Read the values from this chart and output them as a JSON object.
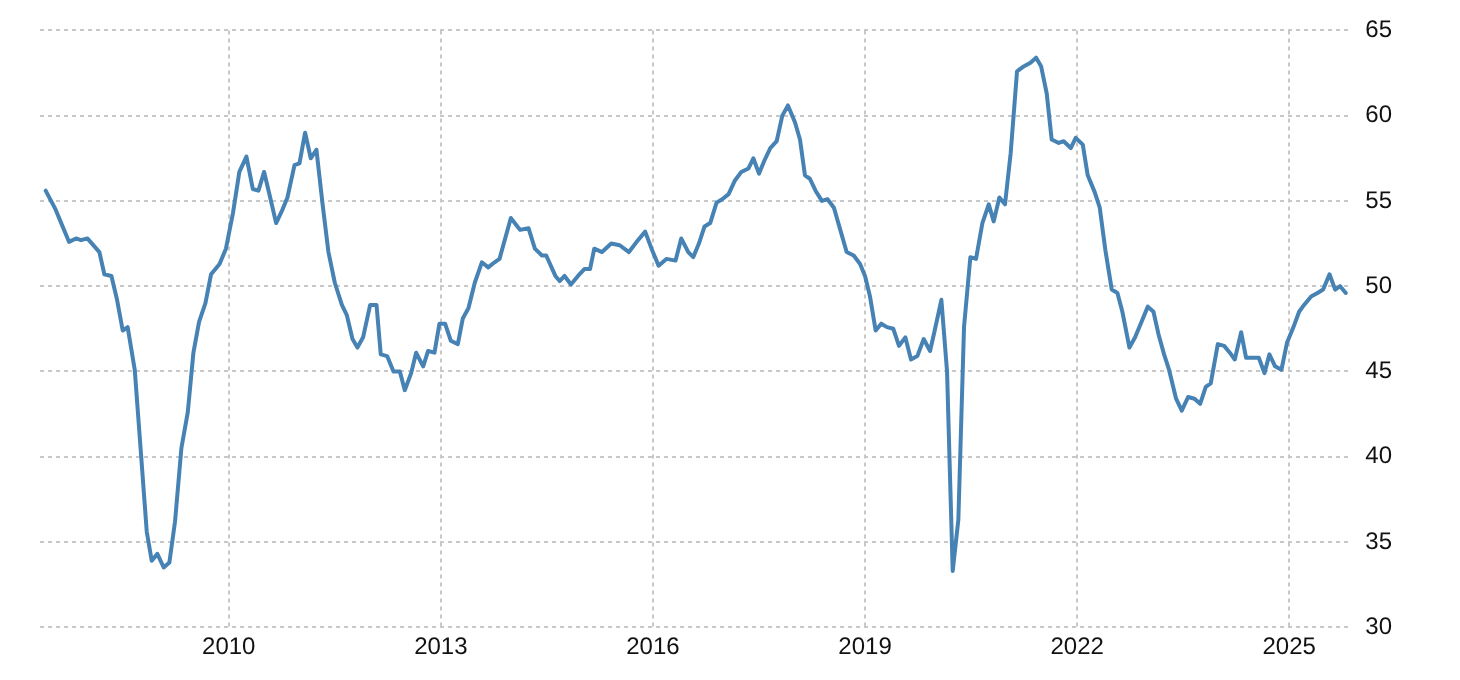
{
  "chart_data": {
    "type": "line",
    "color": "#4682b4",
    "grid": true,
    "legend": false,
    "marker": "none",
    "line_style": "solid",
    "x": [
      2007.41,
      2007.55,
      2007.65,
      2007.74,
      2007.84,
      2007.91,
      2008.0,
      2008.17,
      2008.24,
      2008.34,
      2008.42,
      2008.5,
      2008.57,
      2008.67,
      2008.74,
      2008.84,
      2008.91,
      2008.99,
      2009.08,
      2009.16,
      2009.24,
      2009.33,
      2009.42,
      2009.5,
      2009.58,
      2009.67,
      2009.75,
      2009.87,
      2009.96,
      2010.06,
      2010.15,
      2010.25,
      2010.34,
      2010.42,
      2010.5,
      2010.58,
      2010.67,
      2010.75,
      2010.83,
      2010.93,
      2011.0,
      2011.08,
      2011.16,
      2011.24,
      2011.33,
      2011.41,
      2011.5,
      2011.6,
      2011.67,
      2011.75,
      2011.82,
      2011.9,
      2012.0,
      2012.09,
      2012.15,
      2012.24,
      2012.33,
      2012.42,
      2012.49,
      2012.58,
      2012.65,
      2012.75,
      2012.82,
      2012.91,
      2012.98,
      2013.06,
      2013.14,
      2013.24,
      2013.31,
      2013.39,
      2013.48,
      2013.58,
      2013.67,
      2013.76,
      2013.83,
      2013.99,
      2014.12,
      2014.24,
      2014.33,
      2014.43,
      2014.49,
      2014.62,
      2014.68,
      2014.75,
      2014.84,
      2014.94,
      2015.03,
      2015.11,
      2015.17,
      2015.28,
      2015.41,
      2015.53,
      2015.66,
      2015.77,
      2015.89,
      2015.98,
      2016.08,
      2016.19,
      2016.32,
      2016.4,
      2016.5,
      2016.57,
      2016.65,
      2016.73,
      2016.81,
      2016.9,
      2016.98,
      2017.07,
      2017.16,
      2017.25,
      2017.35,
      2017.42,
      2017.5,
      2017.58,
      2017.66,
      2017.75,
      2017.83,
      2017.91,
      2018.01,
      2018.08,
      2018.15,
      2018.22,
      2018.3,
      2018.39,
      2018.47,
      2018.56,
      2018.65,
      2018.74,
      2018.84,
      2018.93,
      2019.0,
      2019.07,
      2019.15,
      2019.23,
      2019.31,
      2019.4,
      2019.48,
      2019.57,
      2019.65,
      2019.74,
      2019.83,
      2019.92,
      2019.98,
      2020.08,
      2020.16,
      2020.24,
      2020.32,
      2020.4,
      2020.49,
      2020.57,
      2020.66,
      2020.75,
      2020.82,
      2020.9,
      2020.98,
      2021.06,
      2021.15,
      2021.25,
      2021.34,
      2021.42,
      2021.49,
      2021.57,
      2021.64,
      2021.74,
      2021.81,
      2021.91,
      2021.98,
      2022.08,
      2022.15,
      2022.25,
      2022.32,
      2022.4,
      2022.49,
      2022.57,
      2022.64,
      2022.74,
      2022.82,
      2022.91,
      2023.0,
      2023.08,
      2023.15,
      2023.23,
      2023.3,
      2023.4,
      2023.48,
      2023.57,
      2023.66,
      2023.74,
      2023.82,
      2023.89,
      2023.99,
      2024.08,
      2024.16,
      2024.23,
      2024.32,
      2024.39,
      2024.48,
      2024.57,
      2024.65,
      2024.72,
      2024.8,
      2024.89,
      2024.97,
      2025.06,
      2025.14,
      2025.21,
      2025.31,
      2025.4,
      2025.48,
      2025.57,
      2025.65,
      2025.72,
      2025.8
    ],
    "values": [
      55.6,
      54.5,
      53.5,
      52.6,
      52.8,
      52.7,
      52.8,
      52.0,
      50.7,
      50.6,
      49.2,
      47.4,
      47.6,
      45.1,
      41.2,
      35.6,
      33.9,
      34.3,
      33.5,
      33.8,
      36.2,
      40.5,
      42.6,
      46.1,
      47.9,
      49.0,
      50.7,
      51.3,
      52.2,
      54.3,
      56.7,
      57.6,
      55.7,
      55.6,
      56.7,
      55.3,
      53.7,
      54.4,
      55.2,
      57.1,
      57.2,
      59.0,
      57.5,
      58.0,
      54.7,
      52.0,
      50.2,
      48.9,
      48.3,
      46.9,
      46.4,
      47.0,
      48.9,
      48.9,
      46.0,
      45.9,
      45.0,
      45.0,
      43.9,
      44.9,
      46.1,
      45.3,
      46.2,
      46.1,
      47.8,
      47.8,
      46.8,
      46.6,
      48.1,
      48.7,
      50.2,
      51.4,
      51.1,
      51.4,
      51.6,
      54.0,
      53.3,
      53.4,
      52.2,
      51.8,
      51.8,
      50.6,
      50.3,
      50.6,
      50.1,
      50.6,
      51.0,
      51.0,
      52.2,
      52.0,
      52.5,
      52.4,
      52.0,
      52.6,
      53.2,
      52.2,
      51.2,
      51.6,
      51.5,
      52.8,
      52.0,
      51.7,
      52.5,
      53.5,
      53.7,
      54.9,
      55.1,
      55.4,
      56.2,
      56.7,
      56.9,
      57.5,
      56.6,
      57.4,
      58.1,
      58.5,
      60.0,
      60.6,
      59.6,
      58.6,
      56.5,
      56.3,
      55.6,
      55.0,
      55.1,
      54.6,
      53.3,
      52.0,
      51.8,
      51.3,
      50.6,
      49.4,
      47.4,
      47.8,
      47.6,
      47.5,
      46.5,
      47.0,
      45.7,
      45.9,
      46.9,
      46.2,
      47.3,
      49.2,
      45.0,
      33.3,
      36.3,
      47.6,
      51.7,
      51.6,
      53.7,
      54.8,
      53.8,
      55.2,
      54.8,
      57.8,
      62.6,
      62.9,
      63.1,
      63.4,
      62.9,
      61.3,
      58.6,
      58.4,
      58.5,
      58.1,
      58.7,
      58.3,
      56.5,
      55.5,
      54.6,
      52.1,
      49.8,
      49.6,
      48.5,
      46.4,
      47.0,
      47.9,
      48.8,
      48.5,
      47.2,
      46.0,
      45.1,
      43.4,
      42.7,
      43.5,
      43.4,
      43.1,
      44.1,
      44.3,
      46.6,
      46.5,
      46.1,
      45.7,
      47.3,
      45.8,
      45.8,
      45.8,
      44.9,
      46.0,
      45.3,
      45.1,
      46.7,
      47.6,
      48.5,
      48.9,
      49.4,
      49.6,
      49.8,
      50.7,
      49.8,
      50.0,
      49.6
    ],
    "xlim": [
      2007.33,
      2025.85
    ],
    "xticks": [
      2010,
      2013,
      2016,
      2019,
      2022,
      2025
    ],
    "ylim": [
      30,
      65
    ],
    "yticks": [
      30,
      35,
      40,
      45,
      50,
      55,
      60,
      65
    ]
  }
}
